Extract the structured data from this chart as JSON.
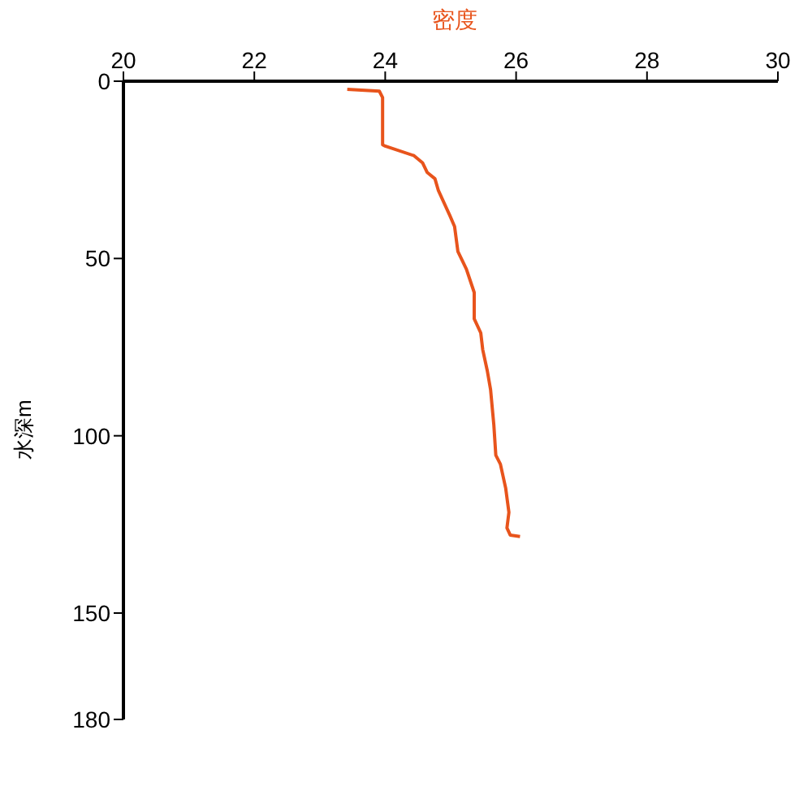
{
  "chart_data": {
    "type": "line",
    "xlabel": "密度",
    "ylabel": "水深m",
    "x": [
      23.42,
      23.91,
      23.96,
      23.96,
      24.0,
      24.44,
      24.57,
      24.64,
      24.76,
      24.81,
      24.99,
      25.06,
      25.11,
      25.24,
      25.36,
      25.36,
      25.46,
      25.49,
      25.56,
      25.61,
      25.66,
      25.69,
      25.76,
      25.84,
      25.89,
      25.86,
      25.91,
      26.06
    ],
    "series": [
      {
        "color": "#e8541c",
        "values": [
          2.3,
          2.8,
          4.6,
          17.9,
          18.3,
          21,
          23,
          25.7,
          27.5,
          30.7,
          38,
          41,
          48,
          53,
          59.6,
          67,
          71,
          75.7,
          81.7,
          87,
          97,
          105.5,
          108,
          114.7,
          121.6,
          126,
          128,
          128.4
        ]
      }
    ],
    "xlim": [
      20,
      30
    ],
    "xticks": [
      20,
      22,
      24,
      26,
      28,
      30
    ],
    "ylim": [
      180,
      0
    ],
    "yticks": [
      0,
      50,
      100,
      150,
      180
    ],
    "grid": false,
    "marker": "none",
    "line_style": "solid"
  }
}
